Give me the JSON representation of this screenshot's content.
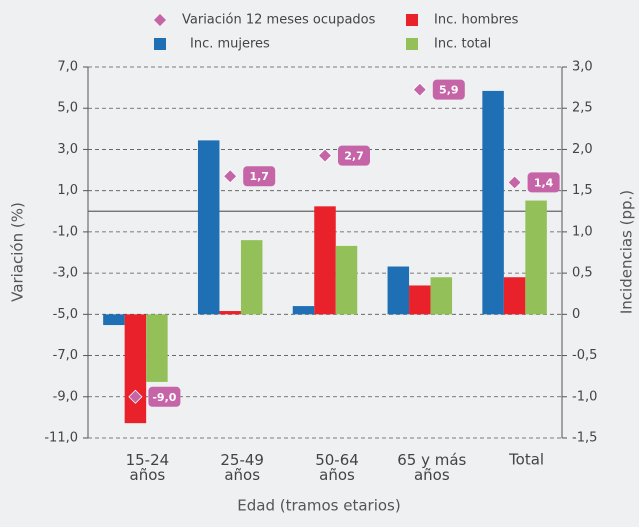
{
  "chart_data": {
    "type": "bar",
    "x_label": "Edad (tramos etarios)",
    "y_label": "Variación (%)",
    "y2_label": "Incidencias (pp.)",
    "categories": [
      "15-24 años",
      "25-49 años",
      "50-64 años",
      "65 y más años",
      "Total"
    ],
    "series": [
      {
        "name": "Variación 12 meses ocupados",
        "type": "scatter",
        "color": "#c565a8",
        "axis": "y",
        "values": [
          -9.0,
          1.7,
          2.7,
          5.9,
          1.4
        ],
        "value_labels": [
          "-9,0",
          "1,7",
          "2,7",
          "5,9",
          "1,4"
        ]
      },
      {
        "name": "Inc. mujeres",
        "type": "bar",
        "color": "#1f6fb5",
        "axis": "y2",
        "values": [
          -0.13,
          2.11,
          0.1,
          0.58,
          2.71
        ]
      },
      {
        "name": "Inc. hombres",
        "type": "bar",
        "color": "#e8212b",
        "axis": "y2",
        "values": [
          -1.32,
          0.04,
          1.31,
          0.35,
          0.45
        ]
      },
      {
        "name": "Inc. total",
        "type": "bar",
        "color": "#94c05a",
        "axis": "y2",
        "values": [
          -0.82,
          0.9,
          0.83,
          0.45,
          1.38
        ]
      }
    ],
    "ylim": [
      -11,
      7
    ],
    "yticks": [
      {
        "value": -11,
        "label": "-11,0"
      },
      {
        "value": -9,
        "label": "-9,0"
      },
      {
        "value": -7,
        "label": "-7,0"
      },
      {
        "value": -5,
        "label": "-5,0"
      },
      {
        "value": -3,
        "label": "-3,0"
      },
      {
        "value": -1,
        "label": "-1,0"
      },
      {
        "value": 1,
        "label": "1,0"
      },
      {
        "value": 3,
        "label": "3,0"
      },
      {
        "value": 5,
        "label": "5,0"
      },
      {
        "value": 7,
        "label": "7,0"
      }
    ],
    "y2lim": [
      -1.5,
      3
    ],
    "y2ticks": [
      {
        "value": -1.5,
        "label": "-1,5"
      },
      {
        "value": -1,
        "label": "-1,0"
      },
      {
        "value": -0.5,
        "label": "-0,5"
      },
      0,
      {
        "value": 0.5,
        "label": "0,5"
      },
      {
        "value": 1,
        "label": "1,0"
      },
      {
        "value": 1.5,
        "label": "1,5"
      },
      {
        "value": 2,
        "label": "2,0"
      },
      {
        "value": 2.5,
        "label": "2,5"
      },
      {
        "value": 3,
        "label": "3,0"
      }
    ],
    "grid": true
  }
}
